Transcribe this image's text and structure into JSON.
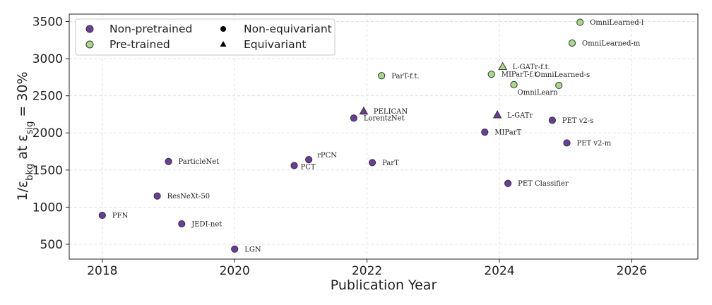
{
  "colors": {
    "non_pretrained": "#6a3d9a",
    "pretrained": "#a6d98c",
    "marker_edge": "#333333",
    "legend_shape": "#000000"
  },
  "chart_data": {
    "type": "scatter",
    "xlabel": "Publication Year",
    "ylabel": "1/ε_bkg at ε_sig = 30%",
    "ylabel_parts": {
      "lead": "1/ε",
      "sub1": "bkg",
      "mid": " at ε",
      "sub2": "sig",
      "tail": " = 30%"
    },
    "xlim": [
      2017.5,
      2027.0
    ],
    "ylim": [
      300,
      3600
    ],
    "xticks": [
      2018,
      2020,
      2022,
      2024,
      2026
    ],
    "yticks": [
      500,
      1000,
      1500,
      2000,
      2500,
      3000,
      3500
    ],
    "grid": true,
    "legend_position": "top-left",
    "legend": {
      "colors": [
        {
          "label": "Non-pretrained",
          "group": "non_pretrained"
        },
        {
          "label": "Pre-trained",
          "group": "pretrained"
        }
      ],
      "shapes": [
        {
          "label": "Non-equivariant",
          "marker": "circle"
        },
        {
          "label": "Equivariant",
          "marker": "triangle"
        }
      ]
    },
    "points": [
      {
        "name": "PFN",
        "x": 2018.0,
        "y": 890,
        "group": "non_pretrained",
        "marker": "circle",
        "label_pos": "right"
      },
      {
        "name": "ResNeXt-50",
        "x": 2018.83,
        "y": 1150,
        "group": "non_pretrained",
        "marker": "circle",
        "label_pos": "right"
      },
      {
        "name": "JEDI-net",
        "x": 2019.2,
        "y": 775,
        "group": "non_pretrained",
        "marker": "circle",
        "label_pos": "right"
      },
      {
        "name": "ParticleNet",
        "x": 2019.0,
        "y": 1615,
        "group": "non_pretrained",
        "marker": "circle",
        "label_pos": "right"
      },
      {
        "name": "LGN",
        "x": 2020.0,
        "y": 435,
        "group": "non_pretrained",
        "marker": "circle",
        "label_pos": "right"
      },
      {
        "name": "PCT",
        "x": 2020.9,
        "y": 1560,
        "group": "non_pretrained",
        "marker": "circle",
        "label_pos": "right-low"
      },
      {
        "name": "rPCN",
        "x": 2021.12,
        "y": 1640,
        "group": "non_pretrained",
        "marker": "circle",
        "label_pos": "right-high"
      },
      {
        "name": "LorentzNet",
        "x": 2021.8,
        "y": 2200,
        "group": "non_pretrained",
        "marker": "circle",
        "label_pos": "right"
      },
      {
        "name": "PELICAN",
        "x": 2021.95,
        "y": 2290,
        "group": "non_pretrained",
        "marker": "triangle",
        "label_pos": "right"
      },
      {
        "name": "ParT",
        "x": 2022.08,
        "y": 1600,
        "group": "non_pretrained",
        "marker": "circle",
        "label_pos": "right"
      },
      {
        "name": "ParT-f.t.",
        "x": 2022.22,
        "y": 2770,
        "group": "pretrained",
        "marker": "circle",
        "label_pos": "right"
      },
      {
        "name": "MIParT",
        "x": 2023.78,
        "y": 2010,
        "group": "non_pretrained",
        "marker": "circle",
        "label_pos": "right"
      },
      {
        "name": "MIParT-f.t.",
        "x": 2023.88,
        "y": 2790,
        "group": "pretrained",
        "marker": "circle",
        "label_pos": "right"
      },
      {
        "name": "L-GATr-f.t.",
        "x": 2024.05,
        "y": 2890,
        "group": "pretrained",
        "marker": "triangle",
        "label_pos": "right"
      },
      {
        "name": "L-GATr",
        "x": 2023.97,
        "y": 2240,
        "group": "non_pretrained",
        "marker": "triangle",
        "label_pos": "right"
      },
      {
        "name": "OmniLearn",
        "x": 2024.22,
        "y": 2650,
        "group": "pretrained",
        "marker": "circle",
        "label_pos": "below-right"
      },
      {
        "name": "PET Classifier",
        "x": 2024.13,
        "y": 1320,
        "group": "non_pretrained",
        "marker": "circle",
        "label_pos": "right"
      },
      {
        "name": "PET v2-s",
        "x": 2024.8,
        "y": 2170,
        "group": "non_pretrained",
        "marker": "circle",
        "label_pos": "right"
      },
      {
        "name": "OmniLearned-s",
        "x": 2024.9,
        "y": 2640,
        "group": "pretrained",
        "marker": "circle",
        "label_pos": "above-right"
      },
      {
        "name": "PET v2-m",
        "x": 2025.02,
        "y": 1865,
        "group": "non_pretrained",
        "marker": "circle",
        "label_pos": "right"
      },
      {
        "name": "OmniLearned-m",
        "x": 2025.1,
        "y": 3210,
        "group": "pretrained",
        "marker": "circle",
        "label_pos": "right"
      },
      {
        "name": "OmniLearned-l",
        "x": 2025.22,
        "y": 3490,
        "group": "pretrained",
        "marker": "circle",
        "label_pos": "right"
      }
    ]
  }
}
